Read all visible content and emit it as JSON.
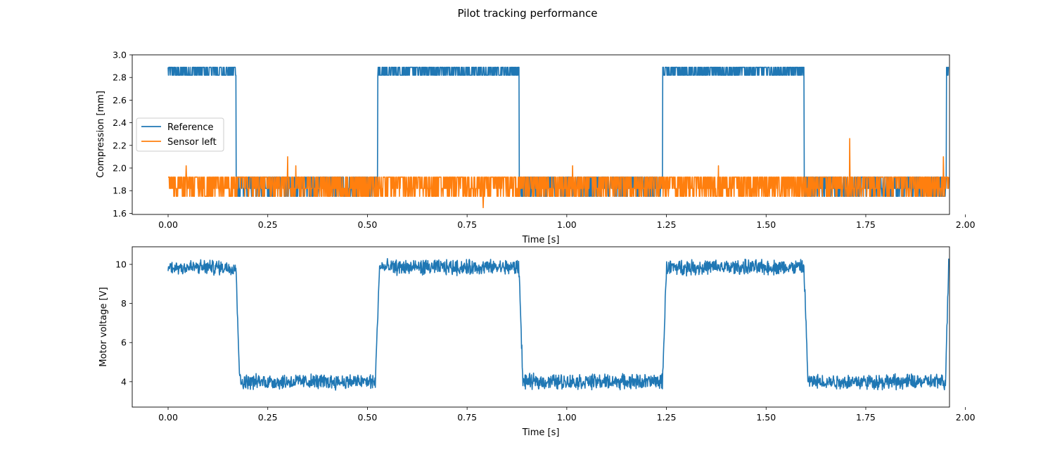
{
  "suptitle": "Pilot tracking performance",
  "chart_data": [
    {
      "type": "line",
      "xlabel": "Time [s]",
      "ylabel": "Compression [mm]",
      "xlim": [
        -0.09,
        1.96
      ],
      "ylim": [
        1.59,
        3.0
      ],
      "xticks": [
        "0.00",
        "0.25",
        "0.50",
        "0.75",
        "1.00",
        "1.25",
        "1.50",
        "1.75",
        "2.00"
      ],
      "yticks": [
        "1.6",
        "1.8",
        "2.0",
        "2.2",
        "2.4",
        "2.6",
        "2.8",
        "3.0"
      ],
      "grid": false,
      "legend": "center-left",
      "series": [
        {
          "name": "Reference",
          "color": "#1f77b4",
          "x": [
            0.0,
            0.17,
            0.171,
            0.525,
            0.526,
            0.88,
            0.881,
            1.24,
            1.241,
            1.595,
            1.596,
            1.95,
            1.955,
            1.958
          ],
          "y": [
            2.86,
            2.86,
            1.87,
            1.87,
            2.86,
            2.86,
            1.87,
            1.87,
            2.86,
            2.86,
            1.87,
            1.87,
            2.8,
            2.89
          ],
          "note_noise": "high-frequency quantized noise between about 2.82 and 2.89 at the high level and 1.74 and 1.92 at the low level"
        },
        {
          "name": "Sensor left",
          "color": "#ff7f0e",
          "x": [
            0.0,
            1.958
          ],
          "y": [
            1.83,
            1.83
          ],
          "spikes": [
            [
              0.045,
              2.02
            ],
            [
              0.3,
              2.1
            ],
            [
              0.32,
              2.02
            ],
            [
              0.79,
              1.65
            ],
            [
              1.015,
              2.02
            ],
            [
              1.38,
              2.02
            ],
            [
              1.71,
              2.26
            ],
            [
              1.945,
              2.1
            ]
          ],
          "note_noise": "rapid switching between about 1.75 and 1.92 for the whole record"
        }
      ]
    },
    {
      "type": "line",
      "xlabel": "Time [s]",
      "ylabel": "Motor voltage [V]",
      "xlim": [
        -0.09,
        1.96
      ],
      "ylim": [
        2.7,
        10.9
      ],
      "xticks": [
        "0.00",
        "0.25",
        "0.50",
        "0.75",
        "1.00",
        "1.25",
        "1.50",
        "1.75",
        "2.00"
      ],
      "yticks": [
        "4",
        "6",
        "8",
        "10"
      ],
      "grid": false,
      "series": [
        {
          "color": "#1f77b4",
          "x": [
            0.0,
            0.17,
            0.18,
            0.52,
            0.53,
            0.88,
            0.89,
            1.24,
            1.25,
            1.595,
            1.605,
            1.95,
            1.958
          ],
          "y": [
            9.85,
            9.85,
            4.0,
            4.0,
            9.85,
            9.85,
            4.0,
            4.0,
            9.85,
            9.85,
            4.0,
            4.0,
            10.05
          ],
          "note_noise": "noise of about ±0.3 V on each level"
        }
      ]
    }
  ]
}
